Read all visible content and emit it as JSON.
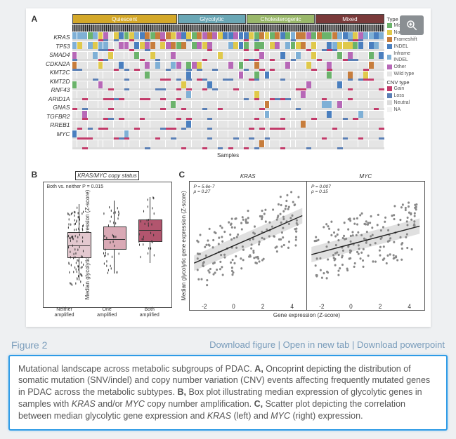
{
  "figure_number_label": "Figure 2",
  "links": {
    "download_figure": "Download figure",
    "open_new_tab": "Open in new tab",
    "download_ppt": "Download powerpoint"
  },
  "caption": {
    "lead": "Mutational landscape across metabolic subgroups of PDAC.",
    "a_label": "A,",
    "a_text_before": " Oncoprint depicting the distribution of somatic mutation (SNV/indel) and copy number variation (CNV) events affecting frequently mutated genes in PDAC across the metabolic subtypes. ",
    "b_label": "B,",
    "b_text_before": " Box plot illustrating median expression of glycolytic genes in samples with ",
    "b_gene1": "KRAS",
    "b_andor": " and/or ",
    "b_gene2": "MYC",
    "b_text_after": " copy number amplification. ",
    "c_label": "C,",
    "c_text_before": " Scatter plot depicting the correlation between median glycolytic gene expression and ",
    "c_gene1": "KRAS",
    "c_mid": " (left) and ",
    "c_gene2": "MYC",
    "c_text_after": " (right) expression."
  },
  "panelA": {
    "label": "A",
    "subgroups": [
      {
        "name": "Quiescent",
        "color": "#d4a829",
        "frac": 0.34
      },
      {
        "name": "Glycolytic",
        "color": "#6aa7b5",
        "frac": 0.22
      },
      {
        "name": "Cholesterogenic",
        "color": "#9ab86a",
        "frac": 0.22
      },
      {
        "name": "Mixed",
        "color": "#7a3a3a",
        "frac": 0.22
      }
    ],
    "genes": [
      "KRAS",
      "TP53",
      "SMAD4",
      "CDKN2A",
      "KMT2C",
      "KMT2D",
      "RNF43",
      "ARID1A",
      "GNAS",
      "TGFBR2",
      "RREB1",
      "MYC"
    ],
    "n_samples": 60,
    "mutation_legend": [
      {
        "label": "Missense",
        "color": "#6bb36b"
      },
      {
        "label": "Nonsense",
        "color": "#e0c94a"
      },
      {
        "label": "Frameshift",
        "color": "#c77d3c"
      },
      {
        "label": "INDEL",
        "color": "#4a7fbf"
      },
      {
        "label": "Inframe INDEL",
        "color": "#7fb0d6"
      },
      {
        "label": "Other",
        "color": "#b768b7"
      },
      {
        "label": "Wild type",
        "color": "#e5e5e5"
      }
    ],
    "cnv_legend": [
      {
        "label": "Gain",
        "color": "#c23b6a"
      },
      {
        "label": "Loss",
        "color": "#5a7fb5"
      },
      {
        "label": "Neutral",
        "color": "#dcdcdc"
      },
      {
        "label": "NA",
        "color": "#f2f2f2"
      }
    ],
    "xlabel": "Samples",
    "mutation_legend_title": "Type",
    "cnv_legend_title": "CNV type",
    "gene_mut_density": [
      0.98,
      0.72,
      0.28,
      0.3,
      0.1,
      0.1,
      0.08,
      0.08,
      0.06,
      0.05,
      0.04,
      0.03
    ]
  },
  "panelB": {
    "label": "B",
    "title": "KRAS/MYC copy status",
    "pvalue_text": "Both vs. neither P = 0.015",
    "ylabel": "Median glycolytic gene expression (Z-score)",
    "categories": [
      "Neither amplified",
      "One amplified",
      "Both amplified"
    ],
    "colors": [
      "#e3c8cf",
      "#d9a9b5",
      "#b2556e"
    ],
    "boxes": [
      {
        "q1": -0.42,
        "med": -0.1,
        "q3": 0.3,
        "lo": -1.1,
        "hi": 1.1,
        "n": 95
      },
      {
        "q1": -0.18,
        "med": 0.1,
        "q3": 0.45,
        "lo": -0.9,
        "hi": 1.2,
        "n": 45
      },
      {
        "q1": 0.05,
        "med": 0.35,
        "q3": 0.65,
        "lo": -0.6,
        "hi": 1.3,
        "n": 30
      }
    ],
    "ylim": [
      -1.5,
      1.5
    ]
  },
  "panelC": {
    "label": "C",
    "ylabel": "Median glycolytic gene expression (Z-score)",
    "xlabel": "Gene expression (Z-score)",
    "facets": [
      {
        "gene": "KRAS",
        "P": "P = 5.6e-7",
        "rho": "ρ = 0.27",
        "slope": 0.2,
        "intercept": 0.0
      },
      {
        "gene": "MYC",
        "P": "P = 0.007",
        "rho": "ρ = 0.15",
        "slope": 0.12,
        "intercept": 0.05
      }
    ],
    "xlim": [
      -3,
      5
    ],
    "ylim": [
      -2,
      2
    ],
    "xticks": [
      -2,
      0,
      2,
      4
    ],
    "n_pts": 180,
    "point_color": "#888",
    "line_color": "#222",
    "ci_color": "#cccccc"
  }
}
